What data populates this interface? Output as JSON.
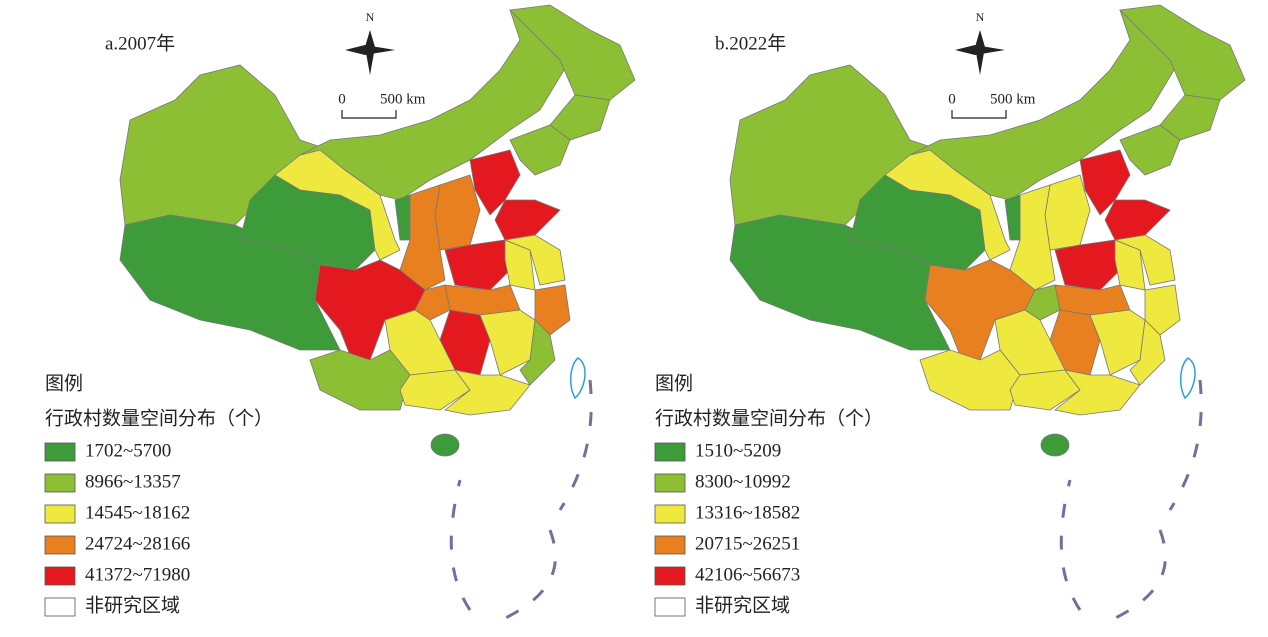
{
  "maps": [
    {
      "title": "a.2007年",
      "north": "N",
      "scale": {
        "start": "0",
        "end": "500 km"
      },
      "legend": {
        "heading": "图例",
        "title": "行政村数量空间分布（个）",
        "items": [
          {
            "label": "1702~5700",
            "color": "#3e9b3a"
          },
          {
            "label": "8966~13357",
            "color": "#8dbf35"
          },
          {
            "label": "14545~18162",
            "color": "#efe93f"
          },
          {
            "label": "24724~28166",
            "color": "#e8801f"
          },
          {
            "label": "41372~71980",
            "color": "#e3191f"
          },
          {
            "label": "非研究区域",
            "color": "#ffffff"
          }
        ]
      }
    },
    {
      "title": "b.2022年",
      "north": "N",
      "scale": {
        "start": "0",
        "end": "500 km"
      },
      "legend": {
        "heading": "图例",
        "title": "行政村数量空间分布（个）",
        "items": [
          {
            "label": "1510~5209",
            "color": "#3e9b3a"
          },
          {
            "label": "8300~10992",
            "color": "#8dbf35"
          },
          {
            "label": "13316~18582",
            "color": "#efe93f"
          },
          {
            "label": "20715~26251",
            "color": "#e8801f"
          },
          {
            "label": "42106~56673",
            "color": "#e3191f"
          },
          {
            "label": "非研究区域",
            "color": "#ffffff"
          }
        ]
      }
    }
  ]
}
